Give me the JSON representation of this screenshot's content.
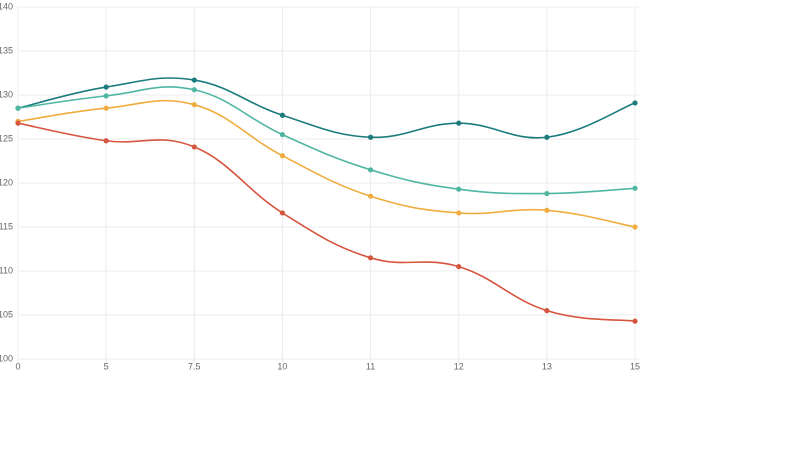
{
  "chart_data": {
    "type": "line",
    "categories": [
      "0",
      "5",
      "7.5",
      "10",
      "11",
      "12",
      "13",
      "15"
    ],
    "series": [
      {
        "color": "#1b7b7d",
        "values": [
          128.5,
          130.9,
          131.7,
          127.7,
          125.2,
          126.8,
          125.2,
          129.1
        ]
      },
      {
        "color": "#4fb6a2",
        "values": [
          128.5,
          129.9,
          130.6,
          125.5,
          121.5,
          119.3,
          118.8,
          119.4
        ]
      },
      {
        "color": "#efac3f",
        "values": [
          127.0,
          128.5,
          128.9,
          123.1,
          118.5,
          116.6,
          116.9,
          115.0
        ]
      },
      {
        "color": "#d6553f",
        "values": [
          126.8,
          124.8,
          124.1,
          116.6,
          111.5,
          110.5,
          105.5,
          104.3
        ]
      }
    ],
    "ylim": [
      100,
      140
    ],
    "yticks": [
      100,
      105,
      110,
      115,
      120,
      125,
      130,
      135,
      140
    ],
    "grid": true
  }
}
